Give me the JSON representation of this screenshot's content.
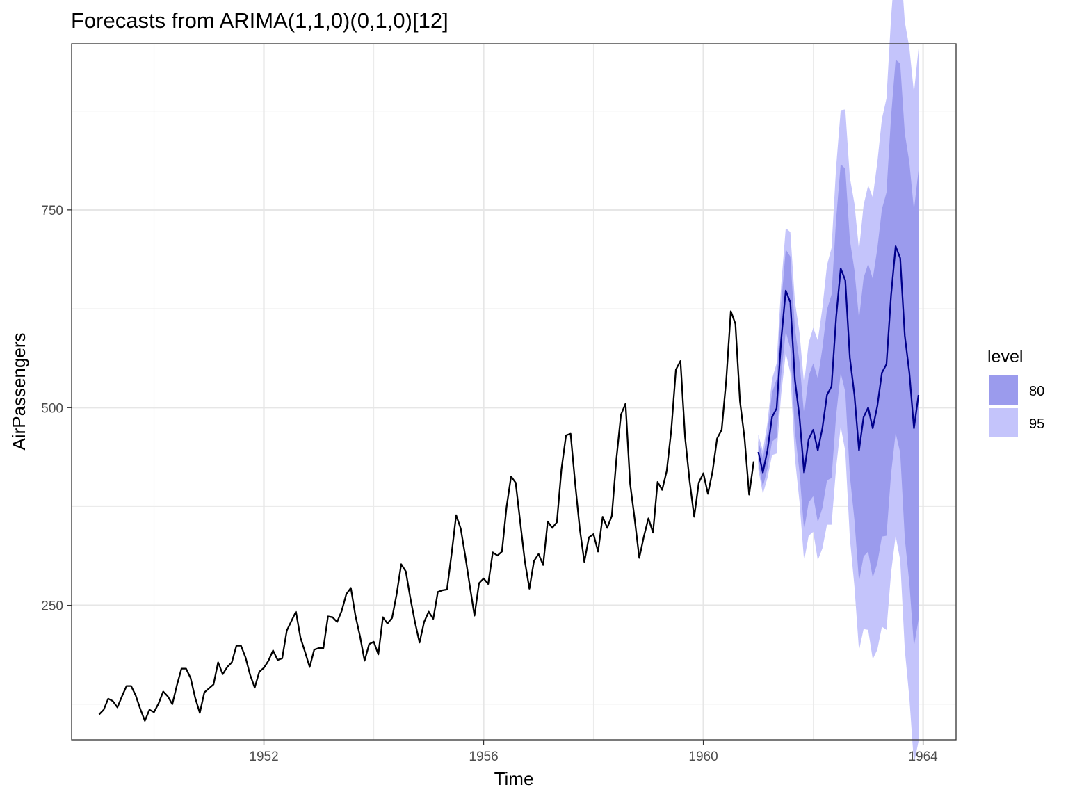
{
  "chart_data": {
    "type": "line",
    "title": "Forecasts from ARIMA(1,1,0)(0,1,0)[12]",
    "xlabel": "Time",
    "ylabel": "AirPassengers",
    "xlim": [
      1948.5,
      1964.6
    ],
    "ylim": [
      80,
      960
    ],
    "x_ticks": [
      1952,
      1956,
      1960,
      1964
    ],
    "y_ticks": [
      250,
      500,
      750
    ],
    "grid": true,
    "legend_position": "right",
    "legend_title": "level",
    "history": {
      "start": 1949,
      "frequency": 12,
      "color": "#000000",
      "values": [
        112,
        118,
        132,
        129,
        121,
        135,
        148,
        148,
        136,
        119,
        104,
        118,
        115,
        126,
        141,
        135,
        125,
        149,
        170,
        170,
        158,
        133,
        114,
        140,
        145,
        150,
        178,
        163,
        172,
        178,
        199,
        199,
        184,
        162,
        146,
        166,
        171,
        180,
        193,
        181,
        183,
        218,
        230,
        242,
        209,
        191,
        172,
        194,
        196,
        196,
        236,
        235,
        229,
        243,
        264,
        272,
        237,
        211,
        180,
        201,
        204,
        188,
        235,
        227,
        234,
        264,
        302,
        293,
        259,
        229,
        203,
        229,
        242,
        233,
        267,
        269,
        270,
        315,
        364,
        347,
        312,
        274,
        237,
        278,
        284,
        277,
        317,
        313,
        318,
        374,
        413,
        405,
        355,
        306,
        271,
        306,
        315,
        301,
        356,
        348,
        355,
        422,
        465,
        467,
        404,
        347,
        305,
        336,
        340,
        318,
        362,
        348,
        363,
        435,
        491,
        505,
        404,
        359,
        310,
        337,
        360,
        342,
        406,
        396,
        420,
        472,
        548,
        559,
        463,
        407,
        362,
        405,
        417,
        391,
        419,
        461,
        472,
        535,
        622,
        606,
        508,
        461,
        390,
        432
      ]
    },
    "forecast": {
      "start": 1961,
      "frequency": 12,
      "color": "#00008b",
      "mean": [
        444,
        418,
        446,
        488,
        499,
        586,
        648,
        633,
        535,
        488,
        418,
        460,
        472,
        446,
        474,
        516,
        527,
        614,
        676,
        661,
        563,
        516,
        446,
        488,
        500,
        474,
        502,
        544,
        555,
        642,
        704,
        689,
        591,
        544,
        474,
        516
      ],
      "intervals": [
        {
          "level": "80",
          "color": "#9b9bed",
          "lo": [
            430,
            400,
            423,
            457,
            462,
            541,
            596,
            575,
            470,
            418,
            345,
            380,
            388,
            355,
            373,
            408,
            411,
            490,
            544,
            520,
            414,
            358,
            280,
            312,
            318,
            285,
            303,
            337,
            338,
            416,
            468,
            443,
            335,
            278,
            198,
            232
          ],
          "hi": [
            458,
            436,
            469,
            519,
            536,
            631,
            700,
            691,
            600,
            558,
            491,
            540,
            556,
            537,
            575,
            624,
            643,
            738,
            808,
            802,
            712,
            674,
            612,
            664,
            682,
            663,
            701,
            751,
            772,
            868,
            940,
            935,
            847,
            810,
            750,
            800
          ]
        },
        {
          "level": "95",
          "color": "#c4c4fb",
          "lo": [
            422,
            391,
            411,
            440,
            442,
            517,
            569,
            544,
            436,
            381,
            306,
            338,
            343,
            307,
            322,
            352,
            352,
            424,
            476,
            445,
            335,
            274,
            193,
            220,
            219,
            182,
            194,
            223,
            219,
            291,
            338,
            307,
            194,
            133,
            50,
            78
          ],
          "hi": [
            466,
            445,
            481,
            536,
            556,
            655,
            727,
            722,
            634,
            595,
            530,
            582,
            601,
            585,
            626,
            680,
            702,
            804,
            876,
            877,
            791,
            758,
            699,
            756,
            781,
            766,
            810,
            865,
            891,
            993,
            1070,
            1071,
            988,
            955,
            898,
            954
          ]
        }
      ]
    }
  }
}
